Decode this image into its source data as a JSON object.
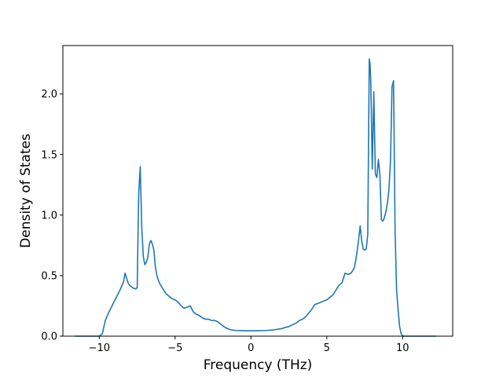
{
  "chart_data": {
    "type": "line",
    "title": "",
    "xlabel": "Frequency (THz)",
    "ylabel": "Density of States",
    "xlim": [
      -12.4,
      13.3
    ],
    "ylim": [
      0.0,
      2.4
    ],
    "grid": false,
    "legend": "none",
    "x_ticks": [
      -10,
      -5,
      0,
      5,
      10
    ],
    "x_tick_labels": [
      "−10",
      "−5",
      "0",
      "5",
      "10"
    ],
    "y_ticks": [
      0.0,
      0.5,
      1.0,
      1.5,
      2.0
    ],
    "y_tick_labels": [
      "0.0",
      "0.5",
      "1.0",
      "1.5",
      "2.0"
    ],
    "series": [
      {
        "color": "#1f77b4",
        "x": [
          -11.6,
          -10.5,
          -10.0,
          -9.8,
          -9.6,
          -9.4,
          -9.2,
          -9.0,
          -8.8,
          -8.6,
          -8.4,
          -8.3,
          -8.2,
          -8.1,
          -8.0,
          -7.8,
          -7.6,
          -7.5,
          -7.45,
          -7.4,
          -7.3,
          -7.25,
          -7.2,
          -7.1,
          -7.0,
          -6.9,
          -6.8,
          -6.7,
          -6.6,
          -6.5,
          -6.4,
          -6.3,
          -6.2,
          -6.1,
          -6.0,
          -5.8,
          -5.6,
          -5.4,
          -5.2,
          -5.0,
          -4.8,
          -4.6,
          -4.4,
          -4.2,
          -4.0,
          -3.8,
          -3.6,
          -3.4,
          -3.2,
          -3.0,
          -2.8,
          -2.6,
          -2.4,
          -2.2,
          -2.0,
          -1.8,
          -1.6,
          -1.4,
          -1.2,
          -1.0,
          -0.5,
          0.0,
          0.5,
          1.0,
          1.5,
          2.0,
          2.5,
          3.0,
          3.2,
          3.4,
          3.6,
          3.8,
          4.0,
          4.2,
          4.4,
          4.6,
          4.8,
          5.0,
          5.2,
          5.4,
          5.5,
          5.6,
          5.7,
          5.8,
          6.0,
          6.2,
          6.4,
          6.6,
          6.8,
          6.9,
          7.0,
          7.1,
          7.2,
          7.3,
          7.4,
          7.5,
          7.6,
          7.7,
          7.8,
          7.85,
          7.9,
          8.0,
          8.1,
          8.2,
          8.3,
          8.4,
          8.5,
          8.6,
          8.7,
          8.8,
          8.9,
          9.0,
          9.1,
          9.2,
          9.3,
          9.4,
          9.5,
          9.6,
          9.7,
          9.8,
          9.9,
          10.0,
          10.1,
          10.2,
          10.4,
          10.8,
          11.5,
          12.2
        ],
        "y": [
          0.0,
          0.0,
          0.0,
          0.02,
          0.13,
          0.19,
          0.24,
          0.29,
          0.34,
          0.39,
          0.45,
          0.52,
          0.48,
          0.44,
          0.42,
          0.4,
          0.39,
          0.4,
          0.8,
          1.18,
          1.4,
          1.15,
          0.9,
          0.66,
          0.59,
          0.61,
          0.65,
          0.76,
          0.79,
          0.76,
          0.71,
          0.57,
          0.5,
          0.46,
          0.43,
          0.39,
          0.35,
          0.33,
          0.31,
          0.3,
          0.28,
          0.25,
          0.23,
          0.24,
          0.25,
          0.2,
          0.18,
          0.17,
          0.15,
          0.14,
          0.14,
          0.13,
          0.13,
          0.12,
          0.1,
          0.08,
          0.065,
          0.055,
          0.05,
          0.047,
          0.045,
          0.044,
          0.045,
          0.047,
          0.052,
          0.062,
          0.08,
          0.11,
          0.13,
          0.14,
          0.16,
          0.19,
          0.22,
          0.26,
          0.27,
          0.28,
          0.29,
          0.3,
          0.32,
          0.34,
          0.36,
          0.38,
          0.4,
          0.42,
          0.44,
          0.52,
          0.51,
          0.52,
          0.56,
          0.62,
          0.7,
          0.8,
          0.91,
          0.79,
          0.72,
          0.71,
          0.72,
          0.84,
          2.29,
          2.25,
          2.1,
          1.38,
          2.02,
          1.34,
          1.31,
          1.46,
          1.33,
          0.96,
          0.95,
          0.98,
          1.03,
          1.1,
          1.22,
          1.45,
          2.06,
          2.11,
          0.88,
          0.38,
          0.22,
          0.08,
          0.02,
          0.003,
          0.0,
          0.0,
          0.0,
          0.0,
          0.0,
          0.0
        ]
      }
    ]
  }
}
